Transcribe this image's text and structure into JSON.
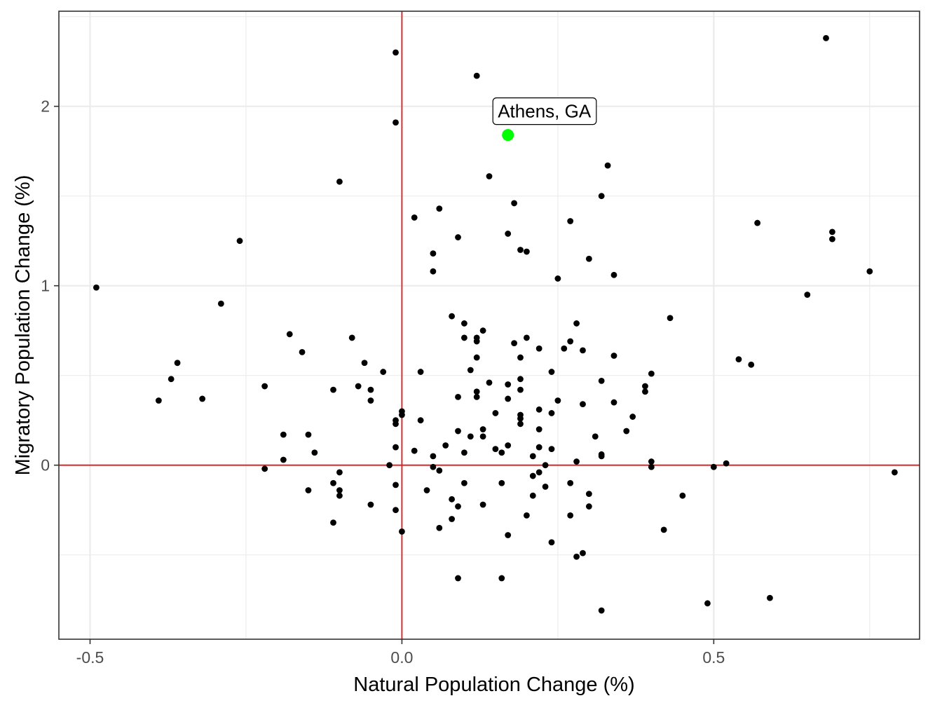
{
  "chart_data": {
    "type": "scatter",
    "xlabel": "Natural Population Change (%)",
    "ylabel": "Migratory Population Change (%)",
    "xlim": [
      -0.55,
      0.83
    ],
    "ylim": [
      -0.97,
      2.53
    ],
    "x_ticks": [
      -0.5,
      0.0,
      0.5
    ],
    "x_tick_labels": [
      "-0.5",
      "0.0",
      "0.5"
    ],
    "y_ticks": [
      0,
      1,
      2
    ],
    "y_tick_labels": [
      "0",
      "1",
      "2"
    ],
    "grid": true,
    "reference_lines": {
      "x": 0,
      "y": 0,
      "color": "#e41a1c"
    },
    "point_color": "#000000",
    "highlight": {
      "label": "Athens, GA",
      "x": 0.17,
      "y": 1.84,
      "color": "#00ff00"
    },
    "points": [
      [
        -0.49,
        0.99
      ],
      [
        -0.39,
        0.36
      ],
      [
        -0.37,
        0.48
      ],
      [
        -0.36,
        0.57
      ],
      [
        -0.32,
        0.37
      ],
      [
        -0.29,
        0.9
      ],
      [
        -0.26,
        1.25
      ],
      [
        -0.22,
        0.44
      ],
      [
        -0.22,
        -0.02
      ],
      [
        -0.19,
        0.17
      ],
      [
        -0.19,
        0.03
      ],
      [
        -0.18,
        0.73
      ],
      [
        -0.16,
        0.63
      ],
      [
        -0.15,
        0.17
      ],
      [
        -0.15,
        -0.14
      ],
      [
        -0.14,
        0.07
      ],
      [
        -0.11,
        0.42
      ],
      [
        -0.11,
        -0.1
      ],
      [
        -0.11,
        -0.32
      ],
      [
        -0.1,
        1.58
      ],
      [
        -0.1,
        -0.04
      ],
      [
        -0.1,
        -0.14
      ],
      [
        -0.1,
        -0.17
      ],
      [
        -0.08,
        0.71
      ],
      [
        -0.07,
        0.44
      ],
      [
        -0.06,
        0.57
      ],
      [
        -0.05,
        0.42
      ],
      [
        -0.05,
        0.36
      ],
      [
        -0.05,
        -0.22
      ],
      [
        -0.03,
        0.52
      ],
      [
        -0.02,
        0.0
      ],
      [
        -0.01,
        2.3
      ],
      [
        -0.01,
        1.91
      ],
      [
        -0.01,
        0.25
      ],
      [
        -0.01,
        0.23
      ],
      [
        -0.01,
        0.1
      ],
      [
        -0.01,
        -0.11
      ],
      [
        -0.01,
        -0.25
      ],
      [
        0.0,
        0.3
      ],
      [
        0.0,
        0.28
      ],
      [
        0.0,
        -0.37
      ],
      [
        0.02,
        1.38
      ],
      [
        0.02,
        0.08
      ],
      [
        0.03,
        0.52
      ],
      [
        0.03,
        0.25
      ],
      [
        0.04,
        -0.14
      ],
      [
        0.05,
        1.18
      ],
      [
        0.05,
        1.08
      ],
      [
        0.05,
        0.05
      ],
      [
        0.05,
        -0.01
      ],
      [
        0.06,
        1.43
      ],
      [
        0.06,
        -0.03
      ],
      [
        0.06,
        -0.35
      ],
      [
        0.07,
        0.11
      ],
      [
        0.08,
        0.83
      ],
      [
        0.08,
        -0.19
      ],
      [
        0.08,
        -0.3
      ],
      [
        0.09,
        1.27
      ],
      [
        0.09,
        0.38
      ],
      [
        0.09,
        0.19
      ],
      [
        0.09,
        -0.23
      ],
      [
        0.09,
        -0.63
      ],
      [
        0.1,
        0.79
      ],
      [
        0.1,
        0.71
      ],
      [
        0.1,
        0.07
      ],
      [
        0.1,
        -0.1
      ],
      [
        0.11,
        0.53
      ],
      [
        0.11,
        0.16
      ],
      [
        0.12,
        2.17
      ],
      [
        0.12,
        0.71
      ],
      [
        0.12,
        0.69
      ],
      [
        0.12,
        0.6
      ],
      [
        0.12,
        0.41
      ],
      [
        0.12,
        0.38
      ],
      [
        0.13,
        0.75
      ],
      [
        0.13,
        0.2
      ],
      [
        0.13,
        0.16
      ],
      [
        0.13,
        -0.22
      ],
      [
        0.14,
        1.61
      ],
      [
        0.14,
        0.46
      ],
      [
        0.15,
        0.29
      ],
      [
        0.15,
        0.09
      ],
      [
        0.16,
        0.07
      ],
      [
        0.16,
        -0.1
      ],
      [
        0.16,
        -0.63
      ],
      [
        0.17,
        1.29
      ],
      [
        0.17,
        0.45
      ],
      [
        0.17,
        0.37
      ],
      [
        0.17,
        0.11
      ],
      [
        0.17,
        -0.39
      ],
      [
        0.18,
        1.46
      ],
      [
        0.18,
        0.68
      ],
      [
        0.19,
        1.2
      ],
      [
        0.19,
        0.6
      ],
      [
        0.19,
        0.48
      ],
      [
        0.19,
        0.42
      ],
      [
        0.19,
        0.28
      ],
      [
        0.19,
        0.26
      ],
      [
        0.19,
        0.23
      ],
      [
        0.2,
        1.19
      ],
      [
        0.2,
        0.71
      ],
      [
        0.2,
        -0.28
      ],
      [
        0.21,
        0.05
      ],
      [
        0.21,
        -0.06
      ],
      [
        0.21,
        -0.17
      ],
      [
        0.22,
        0.65
      ],
      [
        0.22,
        0.31
      ],
      [
        0.22,
        0.2
      ],
      [
        0.22,
        0.1
      ],
      [
        0.22,
        -0.04
      ],
      [
        0.23,
        0.0
      ],
      [
        0.23,
        -0.12
      ],
      [
        0.24,
        0.52
      ],
      [
        0.24,
        0.29
      ],
      [
        0.24,
        0.09
      ],
      [
        0.24,
        -0.43
      ],
      [
        0.25,
        1.04
      ],
      [
        0.25,
        0.36
      ],
      [
        0.26,
        0.65
      ],
      [
        0.27,
        1.36
      ],
      [
        0.27,
        0.69
      ],
      [
        0.27,
        -0.1
      ],
      [
        0.27,
        -0.28
      ],
      [
        0.28,
        0.79
      ],
      [
        0.28,
        0.02
      ],
      [
        0.28,
        -0.51
      ],
      [
        0.29,
        0.64
      ],
      [
        0.29,
        0.34
      ],
      [
        0.29,
        -0.49
      ],
      [
        0.3,
        1.15
      ],
      [
        0.3,
        -0.16
      ],
      [
        0.3,
        -0.23
      ],
      [
        0.31,
        0.16
      ],
      [
        0.32,
        1.5
      ],
      [
        0.32,
        0.47
      ],
      [
        0.32,
        0.06
      ],
      [
        0.32,
        0.05
      ],
      [
        0.32,
        -0.81
      ],
      [
        0.33,
        1.67
      ],
      [
        0.34,
        1.06
      ],
      [
        0.34,
        0.61
      ],
      [
        0.34,
        0.35
      ],
      [
        0.36,
        0.19
      ],
      [
        0.37,
        0.27
      ],
      [
        0.39,
        0.44
      ],
      [
        0.39,
        0.41
      ],
      [
        0.4,
        0.51
      ],
      [
        0.4,
        0.02
      ],
      [
        0.4,
        -0.01
      ],
      [
        0.42,
        -0.36
      ],
      [
        0.43,
        0.82
      ],
      [
        0.45,
        -0.17
      ],
      [
        0.49,
        -0.77
      ],
      [
        0.5,
        -0.01
      ],
      [
        0.52,
        0.01
      ],
      [
        0.54,
        0.59
      ],
      [
        0.56,
        0.56
      ],
      [
        0.57,
        1.35
      ],
      [
        0.59,
        -0.74
      ],
      [
        0.65,
        0.95
      ],
      [
        0.68,
        2.38
      ],
      [
        0.69,
        1.3
      ],
      [
        0.69,
        1.26
      ],
      [
        0.75,
        1.08
      ],
      [
        0.79,
        -0.04
      ]
    ]
  }
}
